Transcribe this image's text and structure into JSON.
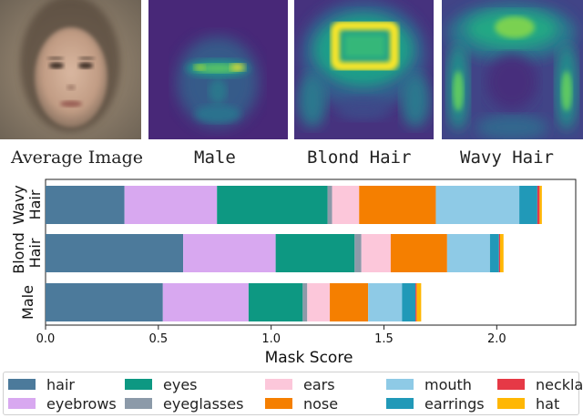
{
  "captions": {
    "average": "Average Image",
    "male": "Male",
    "blond": "Blond Hair",
    "wavy": "Wavy Hair"
  },
  "panels": [
    {
      "name": "average-image",
      "kind": "face"
    },
    {
      "name": "male-mask-heatmap",
      "kind": "heatmap-male"
    },
    {
      "name": "blond-hair-mask-heatmap",
      "kind": "heatmap-blond"
    },
    {
      "name": "wavy-hair-mask-heatmap",
      "kind": "heatmap-wavy"
    }
  ],
  "chart_data": {
    "type": "bar",
    "orientation": "horizontal",
    "stacked": true,
    "categories": [
      "Wavy Hair",
      "Blond Hair",
      "Male"
    ],
    "xlabel": "Mask Score",
    "ylabel": "",
    "xlim": [
      0,
      2.35
    ],
    "xticks": [
      "0.0",
      "0.5",
      "1.0",
      "1.5",
      "2.0"
    ],
    "series": [
      {
        "name": "hair",
        "color": "#4c7a9b",
        "values": [
          0.35,
          0.61,
          0.52
        ]
      },
      {
        "name": "eyebrows",
        "color": "#d8a8f0",
        "values": [
          0.41,
          0.41,
          0.38
        ]
      },
      {
        "name": "eyes",
        "color": "#0d9882",
        "values": [
          0.49,
          0.35,
          0.24
        ]
      },
      {
        "name": "eyeglasses",
        "color": "#8c9aa9",
        "values": [
          0.02,
          0.03,
          0.02
        ]
      },
      {
        "name": "ears",
        "color": "#fcc7da",
        "values": [
          0.12,
          0.13,
          0.1
        ]
      },
      {
        "name": "nose",
        "color": "#f57f00",
        "values": [
          0.34,
          0.25,
          0.17
        ]
      },
      {
        "name": "mouth",
        "color": "#8ecae6",
        "values": [
          0.37,
          0.19,
          0.15
        ]
      },
      {
        "name": "earrings",
        "color": "#2199b8",
        "values": [
          0.08,
          0.04,
          0.06
        ]
      },
      {
        "name": "necklace",
        "color": "#e63946",
        "values": [
          0.01,
          0.005,
          0.005
        ]
      },
      {
        "name": "hat",
        "color": "#ffb703",
        "values": [
          0.01,
          0.015,
          0.02
        ]
      }
    ]
  },
  "legend_order": [
    "hair",
    "eyebrows",
    "eyes",
    "eyeglasses",
    "ears",
    "nose",
    "mouth",
    "earrings",
    "necklace",
    "hat"
  ]
}
